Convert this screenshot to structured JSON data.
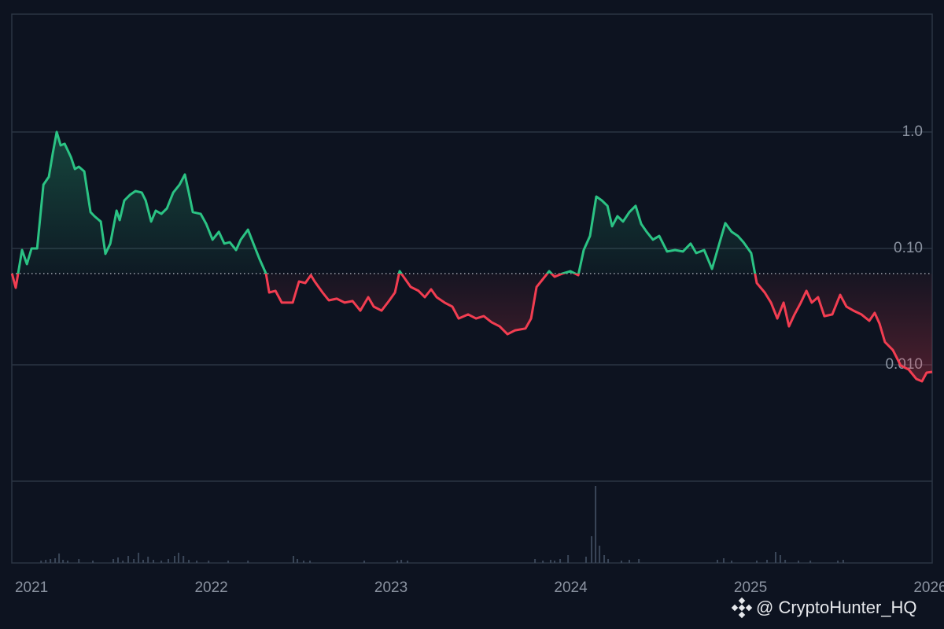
{
  "chart_data": {
    "type": "line",
    "log_scale": true,
    "xlim": [
      2020.89,
      2026.011
    ],
    "xticks": [
      2021,
      2022,
      2023,
      2024,
      2025,
      2026
    ],
    "ylim": [
      0.001,
      10.3
    ],
    "yticks": [
      {
        "value": 0.01,
        "label": "0.010"
      },
      {
        "value": 0.1,
        "label": "0.10"
      },
      {
        "value": 1,
        "label": "1.0"
      }
    ],
    "grid": true,
    "baseline": 0.0608,
    "up_color": "#2bc384",
    "down_color": "#f23d51",
    "x": [
      2020.891,
      2020.912,
      2020.947,
      2020.974,
      2021.0,
      2021.031,
      2021.066,
      2021.096,
      2021.118,
      2021.14,
      2021.162,
      2021.184,
      2021.219,
      2021.241,
      2021.263,
      2021.293,
      2021.328,
      2021.35,
      2021.385,
      2021.411,
      2021.438,
      2021.473,
      2021.49,
      2021.516,
      2021.547,
      2021.578,
      2021.613,
      2021.635,
      2021.665,
      2021.691,
      2021.722,
      2021.753,
      2021.788,
      2021.823,
      2021.853,
      2021.875,
      2021.897,
      2021.941,
      2021.972,
      2022.007,
      2022.042,
      2022.072,
      2022.103,
      2022.138,
      2022.164,
      2022.204,
      2022.234,
      2022.269,
      2022.304,
      2022.322,
      2022.357,
      2022.392,
      2022.453,
      2022.488,
      2022.523,
      2022.554,
      2022.575,
      2022.619,
      2022.654,
      2022.698,
      2022.742,
      2022.786,
      2022.829,
      2022.873,
      2022.904,
      2022.947,
      2022.991,
      2023.022,
      2023.048,
      2023.079,
      2023.109,
      2023.153,
      2023.188,
      2023.223,
      2023.254,
      2023.298,
      2023.341,
      2023.376,
      2023.429,
      2023.473,
      2023.516,
      2023.56,
      2023.604,
      2023.648,
      2023.691,
      2023.748,
      2023.779,
      2023.81,
      2023.845,
      2023.88,
      2023.91,
      2023.954,
      2023.998,
      2024.042,
      2024.072,
      2024.107,
      2024.142,
      2024.173,
      2024.204,
      2024.23,
      2024.26,
      2024.291,
      2024.326,
      2024.361,
      2024.392,
      2024.422,
      2024.457,
      2024.492,
      2024.536,
      2024.58,
      2024.624,
      2024.667,
      2024.698,
      2024.742,
      2024.786,
      2024.816,
      2024.86,
      2024.895,
      2024.93,
      2024.961,
      2025.004,
      2025.035,
      2025.079,
      2025.114,
      2025.149,
      2025.184,
      2025.214,
      2025.245,
      2025.28,
      2025.311,
      2025.341,
      2025.376,
      2025.411,
      2025.455,
      2025.499,
      2025.534,
      2025.573,
      2025.617,
      2025.661,
      2025.691,
      2025.718,
      2025.748,
      2025.792,
      2025.836,
      2025.88,
      2025.923,
      2025.954,
      2025.98,
      2026.011
    ],
    "values": [
      0.0608,
      0.0459,
      0.0969,
      0.0733,
      0.1,
      0.1,
      0.353,
      0.412,
      0.657,
      1.0,
      0.768,
      0.792,
      0.608,
      0.481,
      0.504,
      0.459,
      0.205,
      0.189,
      0.17,
      0.0897,
      0.11,
      0.211,
      0.175,
      0.258,
      0.288,
      0.311,
      0.302,
      0.258,
      0.17,
      0.211,
      0.198,
      0.221,
      0.302,
      0.353,
      0.432,
      0.302,
      0.205,
      0.198,
      0.162,
      0.119,
      0.139,
      0.11,
      0.113,
      0.0969,
      0.119,
      0.145,
      0.11,
      0.0805,
      0.0608,
      0.0418,
      0.0432,
      0.0342,
      0.0342,
      0.052,
      0.0504,
      0.0589,
      0.052,
      0.0418,
      0.0358,
      0.037,
      0.0342,
      0.0353,
      0.0292,
      0.0381,
      0.0316,
      0.0292,
      0.0358,
      0.0418,
      0.0637,
      0.0545,
      0.0467,
      0.0432,
      0.0381,
      0.0445,
      0.0381,
      0.0342,
      0.0316,
      0.025,
      0.0271,
      0.025,
      0.0262,
      0.0232,
      0.0214,
      0.0183,
      0.0198,
      0.0205,
      0.025,
      0.0467,
      0.0545,
      0.0637,
      0.0571,
      0.0608,
      0.0637,
      0.0589,
      0.0969,
      0.128,
      0.279,
      0.258,
      0.232,
      0.155,
      0.189,
      0.17,
      0.205,
      0.232,
      0.162,
      0.139,
      0.119,
      0.128,
      0.094,
      0.0969,
      0.094,
      0.11,
      0.0911,
      0.0969,
      0.0667,
      0.0969,
      0.165,
      0.139,
      0.128,
      0.113,
      0.0911,
      0.0504,
      0.0418,
      0.0342,
      0.025,
      0.0342,
      0.0214,
      0.0271,
      0.0342,
      0.0432,
      0.0342,
      0.0381,
      0.0262,
      0.0271,
      0.0399,
      0.0316,
      0.0292,
      0.0271,
      0.0239,
      0.0279,
      0.0225,
      0.0157,
      0.0134,
      0.00985,
      0.0091,
      0.00755,
      0.00721,
      0.00855,
      0.00869
    ],
    "volume": {
      "color": "#3a4658",
      "ylim": [
        0,
        104
      ],
      "x": [
        2021.053,
        2021.079,
        2021.105,
        2021.131,
        2021.153,
        2021.175,
        2021.201,
        2021.263,
        2021.341,
        2021.455,
        2021.481,
        2021.508,
        2021.538,
        2021.569,
        2021.595,
        2021.621,
        2021.648,
        2021.678,
        2021.722,
        2021.761,
        2021.796,
        2021.818,
        2021.845,
        2021.875,
        2021.919,
        2021.985,
        2022.094,
        2022.204,
        2022.457,
        2022.479,
        2022.514,
        2022.549,
        2022.851,
        2023.035,
        2023.057,
        2023.092,
        2023.801,
        2023.845,
        2023.888,
        2023.91,
        2023.941,
        2023.985,
        2024.085,
        2024.116,
        2024.138,
        2024.16,
        2024.186,
        2024.208,
        2024.282,
        2024.326,
        2024.379,
        2024.816,
        2024.851,
        2024.895,
        2025.035,
        2025.092,
        2025.14,
        2025.166,
        2025.193,
        2025.267,
        2025.333,
        2025.486,
        2025.516
      ],
      "values": [
        3,
        4,
        5,
        6,
        12,
        4,
        3,
        5,
        3,
        5,
        7,
        3,
        9,
        5,
        13,
        4,
        8,
        4,
        3,
        5,
        9,
        13,
        9,
        4,
        3,
        3,
        3,
        3,
        9,
        5,
        3,
        3,
        3,
        3,
        4,
        3,
        5,
        3,
        4,
        3,
        5,
        10,
        8,
        34,
        98,
        22,
        10,
        5,
        3,
        4,
        5,
        4,
        6,
        3,
        3,
        4,
        14,
        10,
        4,
        3,
        3,
        3,
        4
      ]
    },
    "watermark": "@ CryptoHunter_HQ"
  }
}
